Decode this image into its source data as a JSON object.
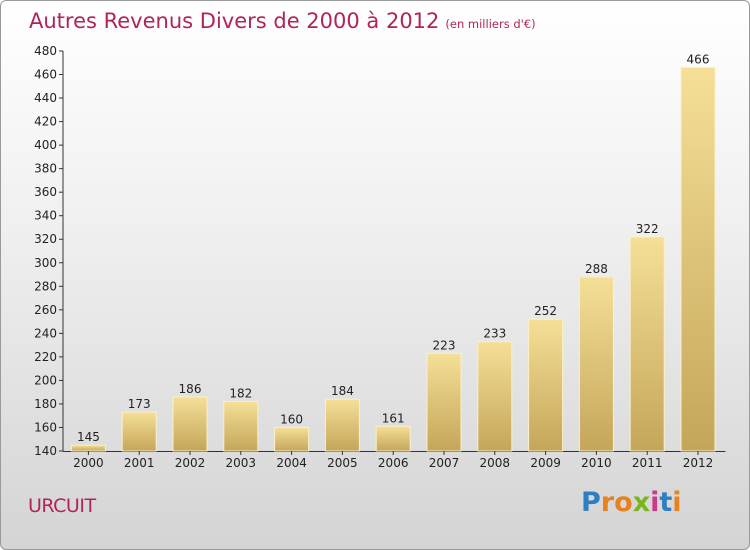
{
  "title": {
    "main": "Autres Revenus Divers de 2000 à 2012",
    "unit": "(en milliers d'€)"
  },
  "commune": "URCUIT",
  "logo": {
    "text": "Proxiti",
    "letter_colors": [
      "#2d7fc1",
      "#e8821e",
      "#e8821e",
      "#7ab51d",
      "#c93a8a",
      "#2d7fc1",
      "#e8821e"
    ]
  },
  "colors": {
    "bar_top": "#f5df97",
    "bar_bottom": "#c4a65a",
    "title": "#b0245a"
  },
  "chart_data": {
    "type": "bar",
    "categories": [
      "2000",
      "2001",
      "2002",
      "2003",
      "2004",
      "2005",
      "2006",
      "2007",
      "2008",
      "2009",
      "2010",
      "2011",
      "2012"
    ],
    "values": [
      145,
      173,
      186,
      182,
      160,
      184,
      161,
      223,
      233,
      252,
      288,
      322,
      466
    ],
    "ylim": [
      140,
      480
    ],
    "yticks": [
      140,
      160,
      180,
      200,
      220,
      240,
      260,
      280,
      300,
      320,
      340,
      360,
      380,
      400,
      420,
      440,
      460,
      480
    ],
    "grid": false,
    "legend": "none"
  }
}
